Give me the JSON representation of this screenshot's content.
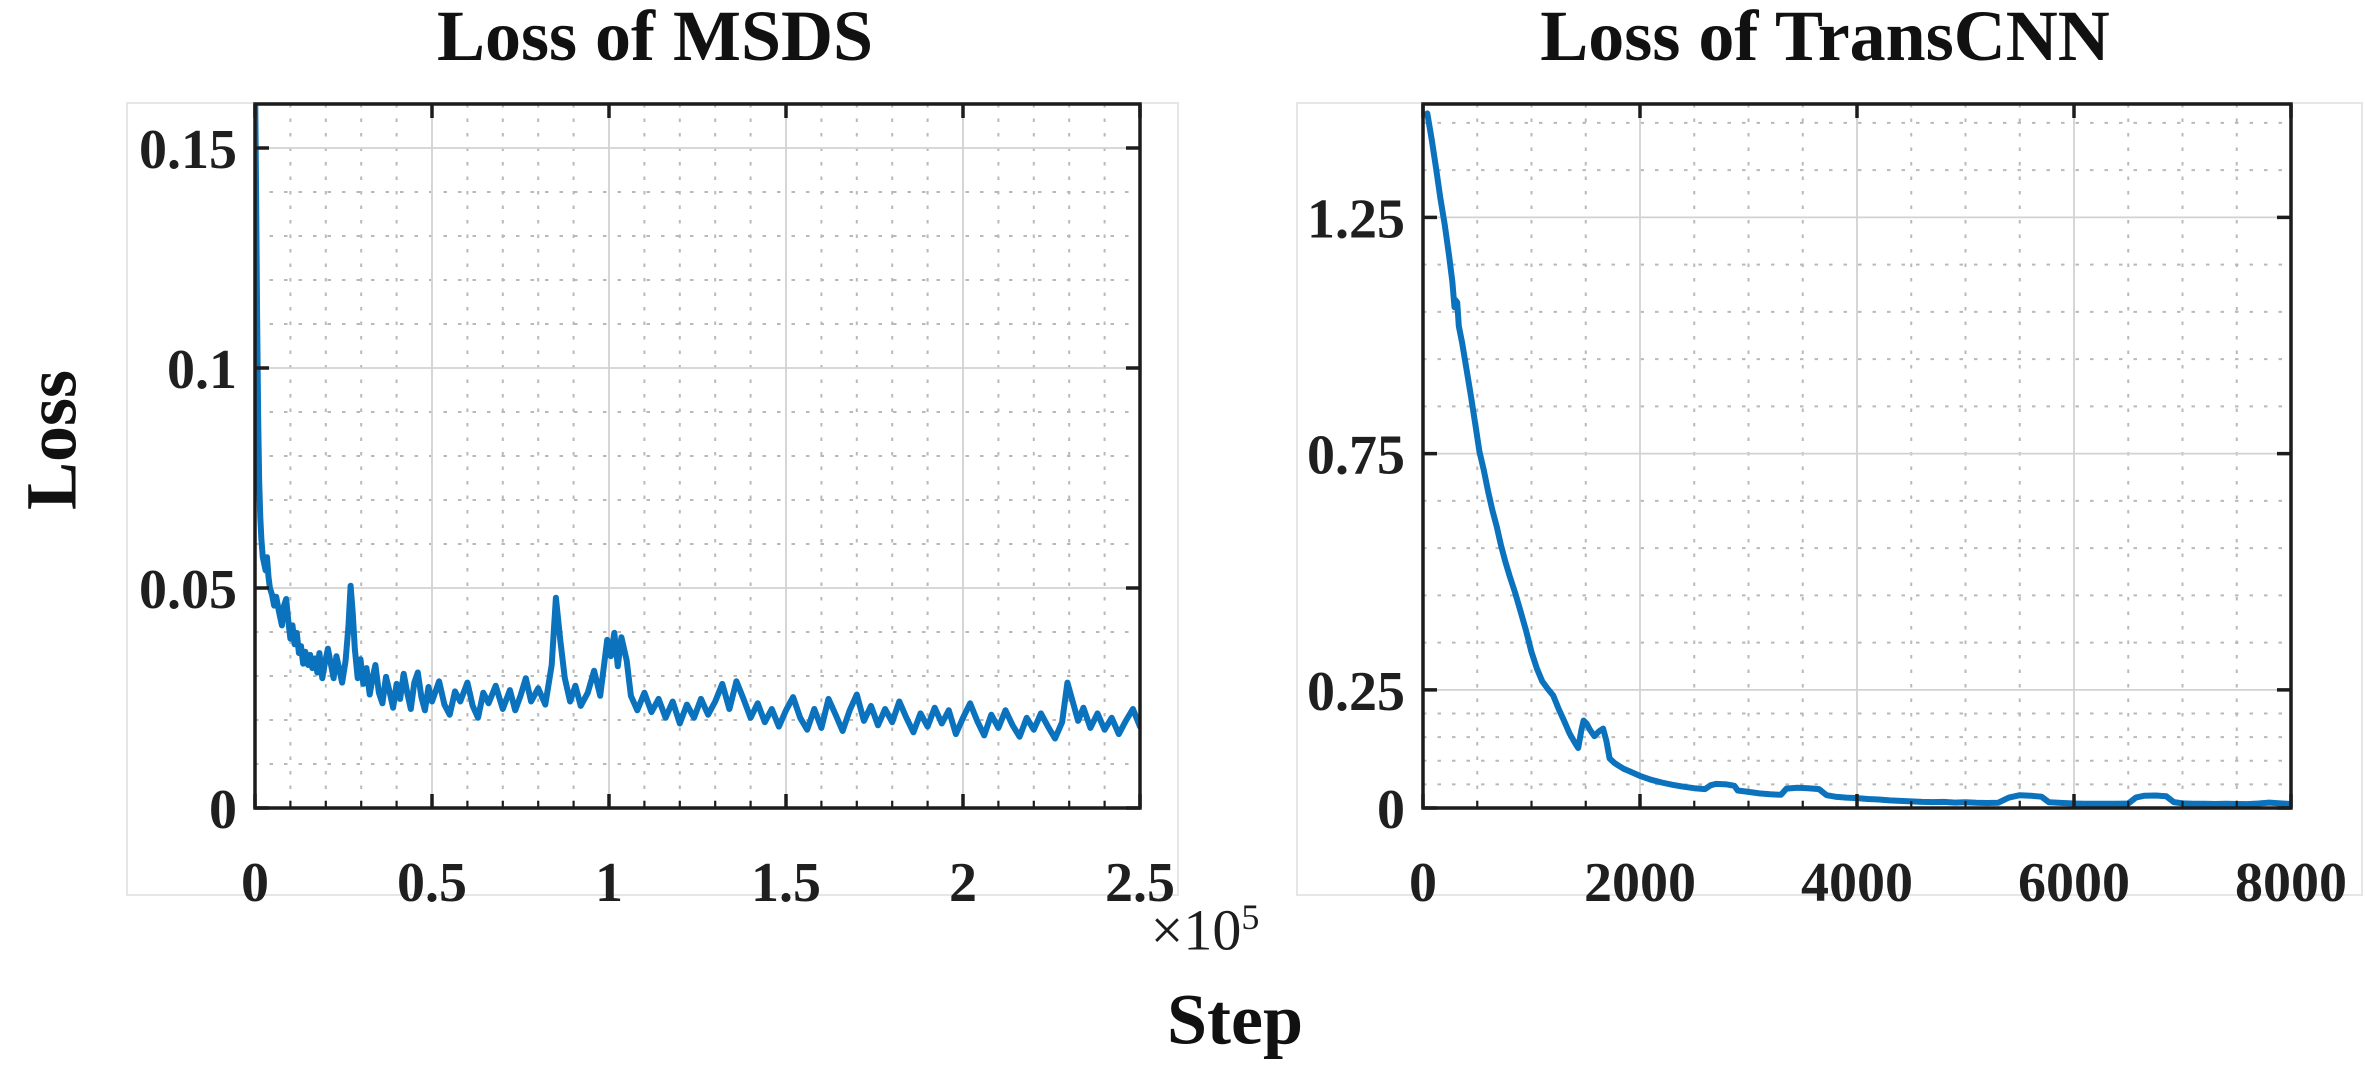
{
  "figure": {
    "ylabel": "Loss",
    "xlabel": "Step",
    "x_exponent_prefix": "×10",
    "x_exponent": "5",
    "line_color": "#0b72bd",
    "axis_color": "#1c1c1c",
    "major_grid_color": "#d2d2d2",
    "minor_grid_color": "#b9b9b9",
    "frame_color": "#e6e6e6"
  },
  "chart_data": [
    {
      "type": "line",
      "title": "Loss of MSDS",
      "xlabel_shared": "Step",
      "ylabel_shared": "Loss",
      "x_unit_note": "×10^5",
      "xlim": [
        0,
        2.5
      ],
      "ylim": [
        0,
        0.16
      ],
      "grid": "on",
      "legend": "none",
      "x_ticks": [
        {
          "v": 0,
          "label": "0"
        },
        {
          "v": 0.5,
          "label": "0.5"
        },
        {
          "v": 1,
          "label": "1"
        },
        {
          "v": 1.5,
          "label": "1.5"
        },
        {
          "v": 2,
          "label": "2"
        },
        {
          "v": 2.5,
          "label": "2.5"
        }
      ],
      "y_ticks": [
        {
          "v": 0,
          "label": "0"
        },
        {
          "v": 0.05,
          "label": "0.05"
        },
        {
          "v": 0.1,
          "label": "0.1"
        },
        {
          "v": 0.15,
          "label": "0.15"
        }
      ],
      "x_minor": [
        0.1,
        0.2,
        0.3,
        0.4,
        0.6,
        0.7,
        0.8,
        0.9,
        1.1,
        1.2,
        1.3,
        1.4,
        1.6,
        1.7,
        1.8,
        1.9,
        2.1,
        2.2,
        2.3,
        2.4
      ],
      "y_minor": [
        0.01,
        0.02,
        0.03,
        0.04,
        0.06,
        0.07,
        0.08,
        0.09,
        0.11,
        0.12,
        0.13,
        0.14
      ],
      "series": [
        [
          0,
          0.166
        ],
        [
          0.003,
          0.14
        ],
        [
          0.006,
          0.112
        ],
        [
          0.009,
          0.088
        ],
        [
          0.012,
          0.074
        ],
        [
          0.015,
          0.066
        ],
        [
          0.018,
          0.061
        ],
        [
          0.022,
          0.057
        ],
        [
          0.026,
          0.0555
        ],
        [
          0.03,
          0.054
        ],
        [
          0.034,
          0.057
        ],
        [
          0.038,
          0.0525
        ],
        [
          0.042,
          0.05
        ],
        [
          0.048,
          0.0485
        ],
        [
          0.054,
          0.046
        ],
        [
          0.06,
          0.048
        ],
        [
          0.068,
          0.0445
        ],
        [
          0.076,
          0.0415
        ],
        [
          0.082,
          0.046
        ],
        [
          0.088,
          0.0475
        ],
        [
          0.094,
          0.0425
        ],
        [
          0.1,
          0.0385
        ],
        [
          0.106,
          0.0415
        ],
        [
          0.112,
          0.0372
        ],
        [
          0.118,
          0.0398
        ],
        [
          0.124,
          0.0352
        ],
        [
          0.13,
          0.0368
        ],
        [
          0.136,
          0.0328
        ],
        [
          0.142,
          0.0355
        ],
        [
          0.15,
          0.0325
        ],
        [
          0.156,
          0.0348
        ],
        [
          0.162,
          0.0318
        ],
        [
          0.17,
          0.034
        ],
        [
          0.176,
          0.0308
        ],
        [
          0.182,
          0.0352
        ],
        [
          0.19,
          0.0295
        ],
        [
          0.198,
          0.0332
        ],
        [
          0.206,
          0.0362
        ],
        [
          0.214,
          0.0328
        ],
        [
          0.222,
          0.0295
        ],
        [
          0.23,
          0.0345
        ],
        [
          0.238,
          0.0315
        ],
        [
          0.246,
          0.0285
        ],
        [
          0.256,
          0.0335
        ],
        [
          0.264,
          0.0415
        ],
        [
          0.27,
          0.0505
        ],
        [
          0.276,
          0.0445
        ],
        [
          0.282,
          0.0362
        ],
        [
          0.29,
          0.0295
        ],
        [
          0.298,
          0.0338
        ],
        [
          0.306,
          0.0282
        ],
        [
          0.315,
          0.0318
        ],
        [
          0.324,
          0.0258
        ],
        [
          0.332,
          0.0295
        ],
        [
          0.34,
          0.0325
        ],
        [
          0.35,
          0.0262
        ],
        [
          0.36,
          0.0238
        ],
        [
          0.37,
          0.0298
        ],
        [
          0.38,
          0.0265
        ],
        [
          0.39,
          0.0228
        ],
        [
          0.4,
          0.0282
        ],
        [
          0.41,
          0.0248
        ],
        [
          0.42,
          0.0305
        ],
        [
          0.43,
          0.0262
        ],
        [
          0.44,
          0.0225
        ],
        [
          0.45,
          0.0285
        ],
        [
          0.46,
          0.0308
        ],
        [
          0.47,
          0.0252
        ],
        [
          0.48,
          0.0222
        ],
        [
          0.49,
          0.0275
        ],
        [
          0.5,
          0.0242
        ],
        [
          0.52,
          0.0288
        ],
        [
          0.535,
          0.0235
        ],
        [
          0.55,
          0.0212
        ],
        [
          0.565,
          0.0265
        ],
        [
          0.58,
          0.0242
        ],
        [
          0.6,
          0.0285
        ],
        [
          0.615,
          0.0232
        ],
        [
          0.63,
          0.0205
        ],
        [
          0.645,
          0.0262
        ],
        [
          0.66,
          0.0238
        ],
        [
          0.68,
          0.0278
        ],
        [
          0.7,
          0.0225
        ],
        [
          0.72,
          0.0268
        ],
        [
          0.735,
          0.0222
        ],
        [
          0.75,
          0.0255
        ],
        [
          0.765,
          0.0295
        ],
        [
          0.78,
          0.0242
        ],
        [
          0.8,
          0.0272
        ],
        [
          0.82,
          0.0235
        ],
        [
          0.838,
          0.0325
        ],
        [
          0.85,
          0.0478
        ],
        [
          0.862,
          0.0385
        ],
        [
          0.875,
          0.0295
        ],
        [
          0.89,
          0.0242
        ],
        [
          0.905,
          0.0278
        ],
        [
          0.92,
          0.0232
        ],
        [
          0.94,
          0.0262
        ],
        [
          0.958,
          0.0312
        ],
        [
          0.975,
          0.0255
        ],
        [
          0.995,
          0.0382
        ],
        [
          1.005,
          0.0345
        ],
        [
          1.015,
          0.0398
        ],
        [
          1.025,
          0.0322
        ],
        [
          1.035,
          0.0388
        ],
        [
          1.05,
          0.0335
        ],
        [
          1.062,
          0.0255
        ],
        [
          1.08,
          0.0222
        ],
        [
          1.1,
          0.0262
        ],
        [
          1.12,
          0.0218
        ],
        [
          1.14,
          0.0248
        ],
        [
          1.16,
          0.0205
        ],
        [
          1.18,
          0.0242
        ],
        [
          1.2,
          0.0192
        ],
        [
          1.22,
          0.0235
        ],
        [
          1.24,
          0.0205
        ],
        [
          1.26,
          0.0248
        ],
        [
          1.28,
          0.0212
        ],
        [
          1.3,
          0.0242
        ],
        [
          1.32,
          0.0282
        ],
        [
          1.34,
          0.0225
        ],
        [
          1.36,
          0.0288
        ],
        [
          1.38,
          0.0248
        ],
        [
          1.4,
          0.0205
        ],
        [
          1.42,
          0.0238
        ],
        [
          1.44,
          0.0195
        ],
        [
          1.46,
          0.0225
        ],
        [
          1.48,
          0.0185
        ],
        [
          1.5,
          0.0222
        ],
        [
          1.52,
          0.0252
        ],
        [
          1.54,
          0.0205
        ],
        [
          1.56,
          0.0178
        ],
        [
          1.58,
          0.0225
        ],
        [
          1.6,
          0.0182
        ],
        [
          1.62,
          0.0248
        ],
        [
          1.64,
          0.0212
        ],
        [
          1.66,
          0.0175
        ],
        [
          1.68,
          0.0222
        ],
        [
          1.7,
          0.0258
        ],
        [
          1.72,
          0.0198
        ],
        [
          1.74,
          0.0232
        ],
        [
          1.76,
          0.0188
        ],
        [
          1.78,
          0.0225
        ],
        [
          1.8,
          0.0195
        ],
        [
          1.82,
          0.0242
        ],
        [
          1.84,
          0.0205
        ],
        [
          1.86,
          0.0172
        ],
        [
          1.88,
          0.0215
        ],
        [
          1.9,
          0.0185
        ],
        [
          1.92,
          0.0228
        ],
        [
          1.94,
          0.0192
        ],
        [
          1.96,
          0.0222
        ],
        [
          1.98,
          0.0168
        ],
        [
          2,
          0.0205
        ],
        [
          2.02,
          0.0238
        ],
        [
          2.04,
          0.0198
        ],
        [
          2.06,
          0.0165
        ],
        [
          2.08,
          0.0212
        ],
        [
          2.1,
          0.0182
        ],
        [
          2.12,
          0.0222
        ],
        [
          2.14,
          0.0188
        ],
        [
          2.16,
          0.0162
        ],
        [
          2.18,
          0.0205
        ],
        [
          2.2,
          0.0178
        ],
        [
          2.22,
          0.0215
        ],
        [
          2.24,
          0.0185
        ],
        [
          2.26,
          0.0158
        ],
        [
          2.28,
          0.0195
        ],
        [
          2.295,
          0.0285
        ],
        [
          2.31,
          0.0242
        ],
        [
          2.325,
          0.0198
        ],
        [
          2.34,
          0.0228
        ],
        [
          2.36,
          0.0182
        ],
        [
          2.38,
          0.0215
        ],
        [
          2.4,
          0.0178
        ],
        [
          2.42,
          0.0205
        ],
        [
          2.44,
          0.0168
        ],
        [
          2.46,
          0.0198
        ],
        [
          2.48,
          0.0225
        ],
        [
          2.5,
          0.0185
        ]
      ]
    },
    {
      "type": "line",
      "title": "Loss of TransCNN",
      "xlabel_shared": "Step",
      "xlim": [
        0,
        8000
      ],
      "ylim": [
        0,
        1.49
      ],
      "grid": "on",
      "legend": "none",
      "x_ticks": [
        {
          "v": 0,
          "label": "0"
        },
        {
          "v": 2000,
          "label": "2000"
        },
        {
          "v": 4000,
          "label": "4000"
        },
        {
          "v": 6000,
          "label": "6000"
        },
        {
          "v": 8000,
          "label": "8000"
        }
      ],
      "y_ticks": [
        {
          "v": 0,
          "label": "0"
        },
        {
          "v": 0.25,
          "label": "0.25"
        },
        {
          "v": 0.75,
          "label": "0.75"
        },
        {
          "v": 1.25,
          "label": "1.25"
        }
      ],
      "x_minor": [
        500,
        1000,
        1500,
        2500,
        3000,
        3500,
        4500,
        5000,
        5500,
        6500,
        7000,
        7500
      ],
      "y_minor": [
        0.05,
        0.1,
        0.15,
        0.2,
        0.35,
        0.45,
        0.55,
        0.65,
        0.85,
        0.95,
        1.05,
        1.15,
        1.35,
        1.45
      ],
      "series": [
        [
          40,
          1.47
        ],
        [
          80,
          1.415
        ],
        [
          120,
          1.355
        ],
        [
          160,
          1.29
        ],
        [
          200,
          1.235
        ],
        [
          240,
          1.17
        ],
        [
          270,
          1.115
        ],
        [
          290,
          1.06
        ],
        [
          300,
          1.075
        ],
        [
          315,
          1.07
        ],
        [
          330,
          1.02
        ],
        [
          360,
          0.985
        ],
        [
          400,
          0.93
        ],
        [
          440,
          0.875
        ],
        [
          480,
          0.815
        ],
        [
          520,
          0.755
        ],
        [
          560,
          0.715
        ],
        [
          600,
          0.67
        ],
        [
          640,
          0.63
        ],
        [
          680,
          0.595
        ],
        [
          720,
          0.555
        ],
        [
          760,
          0.52
        ],
        [
          800,
          0.49
        ],
        [
          850,
          0.455
        ],
        [
          900,
          0.415
        ],
        [
          950,
          0.375
        ],
        [
          1000,
          0.33
        ],
        [
          1050,
          0.295
        ],
        [
          1100,
          0.268
        ],
        [
          1150,
          0.252
        ],
        [
          1200,
          0.238
        ],
        [
          1250,
          0.21
        ],
        [
          1300,
          0.185
        ],
        [
          1350,
          0.158
        ],
        [
          1400,
          0.138
        ],
        [
          1430,
          0.127
        ],
        [
          1460,
          0.165
        ],
        [
          1480,
          0.185
        ],
        [
          1510,
          0.178
        ],
        [
          1540,
          0.165
        ],
        [
          1580,
          0.152
        ],
        [
          1620,
          0.162
        ],
        [
          1660,
          0.168
        ],
        [
          1690,
          0.142
        ],
        [
          1720,
          0.105
        ],
        [
          1760,
          0.096
        ],
        [
          1800,
          0.09
        ],
        [
          1850,
          0.083
        ],
        [
          1900,
          0.078
        ],
        [
          1950,
          0.073
        ],
        [
          2000,
          0.068
        ],
        [
          2100,
          0.06
        ],
        [
          2200,
          0.054
        ],
        [
          2300,
          0.049
        ],
        [
          2400,
          0.045
        ],
        [
          2500,
          0.042
        ],
        [
          2600,
          0.04
        ],
        [
          2650,
          0.048
        ],
        [
          2700,
          0.051
        ],
        [
          2800,
          0.05
        ],
        [
          2870,
          0.047
        ],
        [
          2900,
          0.037
        ],
        [
          3000,
          0.034
        ],
        [
          3100,
          0.031
        ],
        [
          3200,
          0.029
        ],
        [
          3300,
          0.028
        ],
        [
          3350,
          0.041
        ],
        [
          3450,
          0.043
        ],
        [
          3550,
          0.042
        ],
        [
          3650,
          0.04
        ],
        [
          3720,
          0.027
        ],
        [
          3800,
          0.024
        ],
        [
          3900,
          0.022
        ],
        [
          4000,
          0.021
        ],
        [
          4100,
          0.019
        ],
        [
          4200,
          0.018
        ],
        [
          4300,
          0.016
        ],
        [
          4400,
          0.015
        ],
        [
          4500,
          0.014
        ],
        [
          4600,
          0.013
        ],
        [
          4700,
          0.0125
        ],
        [
          4800,
          0.013
        ],
        [
          4900,
          0.0115
        ],
        [
          5000,
          0.012
        ],
        [
          5100,
          0.011
        ],
        [
          5200,
          0.0105
        ],
        [
          5300,
          0.011
        ],
        [
          5400,
          0.022
        ],
        [
          5500,
          0.027
        ],
        [
          5600,
          0.026
        ],
        [
          5700,
          0.024
        ],
        [
          5770,
          0.012
        ],
        [
          5900,
          0.0105
        ],
        [
          6000,
          0.0095
        ],
        [
          6100,
          0.009
        ],
        [
          6200,
          0.0092
        ],
        [
          6300,
          0.0088
        ],
        [
          6400,
          0.009
        ],
        [
          6500,
          0.0095
        ],
        [
          6570,
          0.022
        ],
        [
          6650,
          0.026
        ],
        [
          6750,
          0.0265
        ],
        [
          6850,
          0.025
        ],
        [
          6920,
          0.0125
        ],
        [
          7000,
          0.0098
        ],
        [
          7100,
          0.0092
        ],
        [
          7200,
          0.0088
        ],
        [
          7300,
          0.0085
        ],
        [
          7400,
          0.009
        ],
        [
          7500,
          0.0085
        ],
        [
          7600,
          0.0082
        ],
        [
          7700,
          0.0095
        ],
        [
          7800,
          0.0115
        ],
        [
          7900,
          0.0098
        ],
        [
          8000,
          0.0085
        ]
      ]
    }
  ]
}
